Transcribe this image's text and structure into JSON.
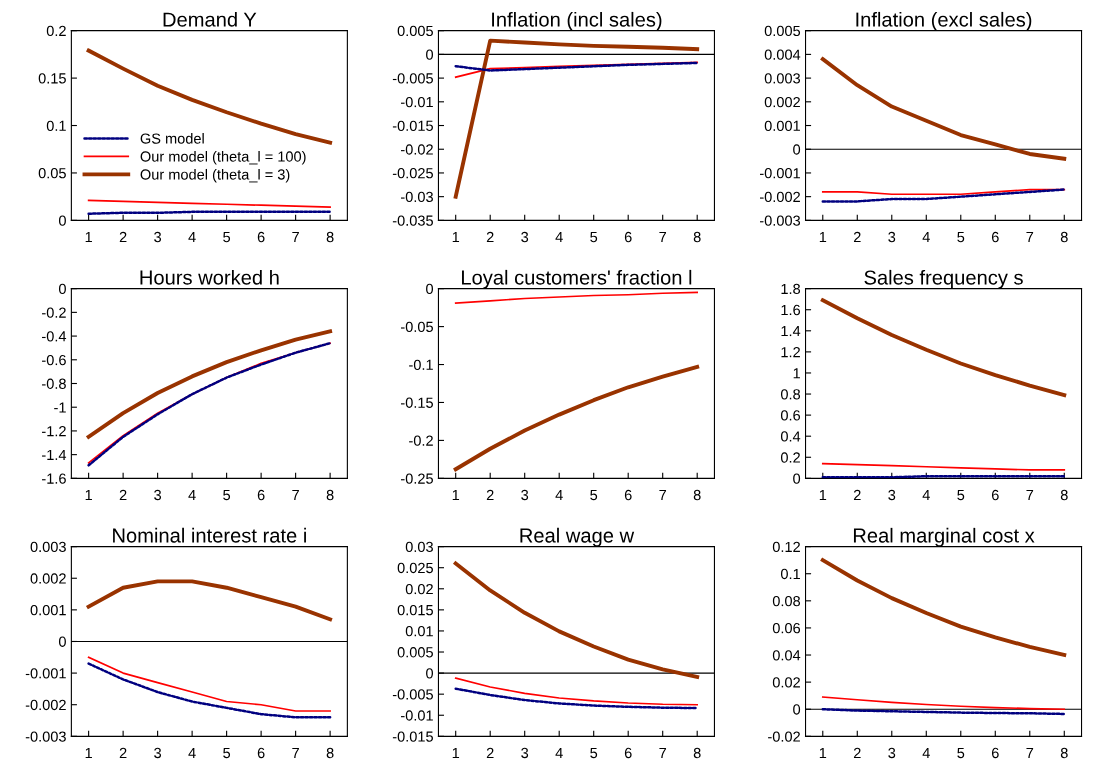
{
  "chart_data": [
    {
      "type": "line",
      "title": "Demand Y",
      "categories": [
        "1",
        "2",
        "3",
        "4",
        "5",
        "6",
        "7",
        "8"
      ],
      "ylim": [
        0,
        0.2
      ],
      "yticks": [
        0,
        0.05,
        0.1,
        0.15,
        0.2
      ],
      "grid": false,
      "legend": "left",
      "series": [
        {
          "name": "GS model",
          "color": "#000080",
          "line_style": "dotted",
          "values": [
            0.007,
            0.008,
            0.008,
            0.009,
            0.009,
            0.009,
            0.009,
            0.009
          ]
        },
        {
          "name": "Our model (theta_l = 100)",
          "color": "#ff0000",
          "line_style": "solid",
          "values": [
            0.021,
            0.02,
            0.019,
            0.018,
            0.017,
            0.016,
            0.015,
            0.014
          ]
        },
        {
          "name": "Our model (theta_l = 3)",
          "color": "#993300",
          "line_style": "solid",
          "values": [
            0.179,
            0.16,
            0.142,
            0.127,
            0.114,
            0.102,
            0.091,
            0.082
          ]
        }
      ]
    },
    {
      "type": "line",
      "title": "Inflation (incl sales)",
      "categories": [
        "1",
        "2",
        "3",
        "4",
        "5",
        "6",
        "7",
        "8"
      ],
      "ylim": [
        -0.035,
        0.005
      ],
      "yticks": [
        -0.035,
        -0.03,
        -0.025,
        -0.02,
        -0.015,
        -0.01,
        -0.005,
        0,
        0.005
      ],
      "grid": false,
      "ref_lines": [
        {
          "axis": "y",
          "value": 0,
          "color": "#000000"
        }
      ],
      "series": [
        {
          "color": "#000080",
          "line_style": "dotted",
          "values": [
            -0.0025,
            -0.0034,
            -0.0031,
            -0.0028,
            -0.0025,
            -0.0022,
            -0.002,
            -0.0018
          ]
        },
        {
          "color": "#ff0000",
          "line_style": "solid",
          "values": [
            -0.0048,
            -0.003,
            -0.0028,
            -0.0025,
            -0.0023,
            -0.0021,
            -0.0019,
            -0.0017
          ]
        },
        {
          "color": "#993300",
          "line_style": "solid",
          "values": [
            -0.03,
            0.0029,
            0.0025,
            0.0021,
            0.0018,
            0.0016,
            0.0014,
            0.0011
          ]
        }
      ]
    },
    {
      "type": "line",
      "title": "Inflation (excl sales)",
      "categories": [
        "1",
        "2",
        "3",
        "4",
        "5",
        "6",
        "7",
        "8"
      ],
      "ylim": [
        -0.003,
        0.005
      ],
      "yticks": [
        -0.003,
        -0.002,
        -0.001,
        0,
        0.001,
        0.002,
        0.003,
        0.004,
        0.005
      ],
      "grid": false,
      "ref_lines": [
        {
          "axis": "y",
          "value": 0,
          "color": "#000000"
        }
      ],
      "series": [
        {
          "color": "#000080",
          "line_style": "dotted",
          "values": [
            -0.0022,
            -0.0022,
            -0.0021,
            -0.0021,
            -0.002,
            -0.0019,
            -0.0018,
            -0.0017
          ]
        },
        {
          "color": "#ff0000",
          "line_style": "solid",
          "values": [
            -0.0018,
            -0.0018,
            -0.0019,
            -0.0019,
            -0.0019,
            -0.0018,
            -0.0017,
            -0.0017
          ]
        },
        {
          "color": "#993300",
          "line_style": "solid",
          "values": [
            0.0038,
            0.0027,
            0.0018,
            0.0012,
            0.0006,
            0.0002,
            -0.0002,
            -0.0004
          ]
        }
      ]
    },
    {
      "type": "line",
      "title": "Hours worked h",
      "categories": [
        "1",
        "2",
        "3",
        "4",
        "5",
        "6",
        "7",
        "8"
      ],
      "ylim": [
        -1.6,
        0
      ],
      "yticks": [
        -1.6,
        -1.4,
        -1.2,
        -1,
        -0.8,
        -0.6,
        -0.4,
        -0.2,
        0
      ],
      "grid": false,
      "series": [
        {
          "color": "#000080",
          "line_style": "dotted",
          "values": [
            -1.49,
            -1.25,
            -1.06,
            -0.89,
            -0.75,
            -0.64,
            -0.54,
            -0.46
          ]
        },
        {
          "color": "#ff0000",
          "line_style": "solid",
          "values": [
            -1.47,
            -1.24,
            -1.05,
            -0.89,
            -0.75,
            -0.63,
            -0.54,
            -0.46
          ]
        },
        {
          "color": "#993300",
          "line_style": "solid",
          "values": [
            -1.25,
            -1.05,
            -0.88,
            -0.74,
            -0.62,
            -0.52,
            -0.43,
            -0.36
          ]
        }
      ]
    },
    {
      "type": "line",
      "title": "Loyal customers' fraction l",
      "categories": [
        "1",
        "2",
        "3",
        "4",
        "5",
        "6",
        "7",
        "8"
      ],
      "ylim": [
        -0.25,
        0
      ],
      "yticks": [
        -0.25,
        -0.2,
        -0.15,
        -0.1,
        -0.05,
        0
      ],
      "grid": false,
      "series": [
        {
          "color": "#ff0000",
          "line_style": "solid",
          "values": [
            -0.019,
            -0.016,
            -0.013,
            -0.011,
            -0.009,
            -0.008,
            -0.006,
            -0.005
          ]
        },
        {
          "color": "#993300",
          "line_style": "solid",
          "values": [
            -0.238,
            -0.211,
            -0.187,
            -0.166,
            -0.147,
            -0.13,
            -0.116,
            -0.103
          ]
        }
      ]
    },
    {
      "type": "line",
      "title": "Sales frequency s",
      "categories": [
        "1",
        "2",
        "3",
        "4",
        "5",
        "6",
        "7",
        "8"
      ],
      "ylim": [
        0,
        1.8
      ],
      "yticks": [
        0,
        0.2,
        0.4,
        0.6,
        0.8,
        1,
        1.2,
        1.4,
        1.6,
        1.8
      ],
      "grid": false,
      "series": [
        {
          "color": "#000080",
          "line_style": "dotted",
          "values": [
            0.01,
            0.01,
            0.01,
            0.02,
            0.02,
            0.02,
            0.02,
            0.02
          ]
        },
        {
          "color": "#ff0000",
          "line_style": "solid",
          "values": [
            0.14,
            0.13,
            0.12,
            0.11,
            0.1,
            0.09,
            0.08,
            0.08
          ]
        },
        {
          "color": "#993300",
          "line_style": "solid",
          "values": [
            1.69,
            1.52,
            1.36,
            1.22,
            1.09,
            0.98,
            0.88,
            0.79
          ]
        }
      ]
    },
    {
      "type": "line",
      "title": "Nominal interest rate i",
      "categories": [
        "1",
        "2",
        "3",
        "4",
        "5",
        "6",
        "7",
        "8"
      ],
      "ylim": [
        -0.003,
        0.003
      ],
      "yticks": [
        -0.003,
        -0.002,
        -0.001,
        0,
        0.001,
        0.002,
        0.003
      ],
      "grid": false,
      "ref_lines": [
        {
          "axis": "y",
          "value": 0,
          "color": "#000000"
        }
      ],
      "series": [
        {
          "color": "#000080",
          "line_style": "dotted",
          "values": [
            -0.0007,
            -0.0012,
            -0.0016,
            -0.0019,
            -0.0021,
            -0.0023,
            -0.0024,
            -0.0024
          ]
        },
        {
          "color": "#ff0000",
          "line_style": "solid",
          "values": [
            -0.0005,
            -0.001,
            -0.0013,
            -0.0016,
            -0.0019,
            -0.002,
            -0.0022,
            -0.0022
          ]
        },
        {
          "color": "#993300",
          "line_style": "solid",
          "values": [
            0.0011,
            0.0017,
            0.0019,
            0.0019,
            0.0017,
            0.0014,
            0.0011,
            0.0007
          ]
        }
      ]
    },
    {
      "type": "line",
      "title": "Real wage w",
      "categories": [
        "1",
        "2",
        "3",
        "4",
        "5",
        "6",
        "7",
        "8"
      ],
      "ylim": [
        -0.015,
        0.03
      ],
      "yticks": [
        -0.015,
        -0.01,
        -0.005,
        0,
        0.005,
        0.01,
        0.015,
        0.02,
        0.025,
        0.03
      ],
      "grid": false,
      "ref_lines": [
        {
          "axis": "y",
          "value": 0,
          "color": "#000000"
        }
      ],
      "series": [
        {
          "color": "#000080",
          "line_style": "dotted",
          "values": [
            -0.0037,
            -0.0052,
            -0.0064,
            -0.0072,
            -0.0077,
            -0.008,
            -0.0082,
            -0.0083
          ]
        },
        {
          "color": "#ff0000",
          "line_style": "solid",
          "values": [
            -0.0012,
            -0.0033,
            -0.0048,
            -0.0059,
            -0.0066,
            -0.0071,
            -0.0074,
            -0.0075
          ]
        },
        {
          "color": "#993300",
          "line_style": "solid",
          "values": [
            0.026,
            0.0196,
            0.0143,
            0.0099,
            0.0063,
            0.0032,
            0.0009,
            -0.0009
          ]
        }
      ]
    },
    {
      "type": "line",
      "title": "Real marginal cost x",
      "categories": [
        "1",
        "2",
        "3",
        "4",
        "5",
        "6",
        "7",
        "8"
      ],
      "ylim": [
        -0.02,
        0.12
      ],
      "yticks": [
        -0.02,
        0,
        0.02,
        0.04,
        0.06,
        0.08,
        0.1,
        0.12
      ],
      "grid": false,
      "ref_lines": [
        {
          "axis": "y",
          "value": 0,
          "color": "#000000"
        }
      ],
      "series": [
        {
          "color": "#000080",
          "line_style": "dotted",
          "values": [
            0,
            -0.001,
            -0.0015,
            -0.002,
            -0.0025,
            -0.0028,
            -0.003,
            -0.0035
          ]
        },
        {
          "color": "#ff0000",
          "line_style": "solid",
          "values": [
            0.009,
            0.007,
            0.005,
            0.0035,
            0.0022,
            0.0012,
            0.0005,
            0
          ]
        },
        {
          "color": "#993300",
          "line_style": "solid",
          "values": [
            0.11,
            0.095,
            0.082,
            0.071,
            0.061,
            0.053,
            0.046,
            0.04
          ]
        }
      ]
    }
  ]
}
